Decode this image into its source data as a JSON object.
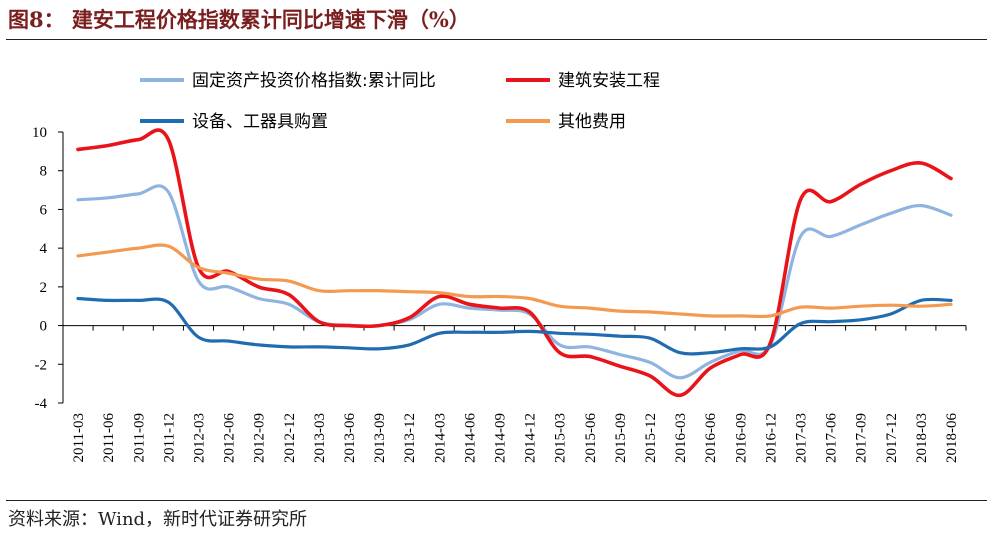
{
  "title": "图8：  建安工程价格指数累计同比增速下滑（%）",
  "source": "资料来源：Wind，新时代证券研究所",
  "chart_data": {
    "type": "line",
    "title": "图8：  建安工程价格指数累计同比增速下滑（%）",
    "xlabel": "",
    "ylabel": "",
    "ylim": [
      -4,
      10
    ],
    "yticks": [
      -4,
      -2,
      0,
      2,
      4,
      6,
      8,
      10
    ],
    "grid": false,
    "legend_position": "top",
    "categories": [
      "2011-03",
      "2011-06",
      "2011-09",
      "2011-12",
      "2012-03",
      "2012-06",
      "2012-09",
      "2012-12",
      "2013-03",
      "2013-06",
      "2013-09",
      "2013-12",
      "2014-03",
      "2014-06",
      "2014-09",
      "2014-12",
      "2015-03",
      "2015-06",
      "2015-09",
      "2015-12",
      "2016-03",
      "2016-06",
      "2016-09",
      "2016-12",
      "2017-03",
      "2017-06",
      "2017-09",
      "2017-12",
      "2018-03",
      "2018-06"
    ],
    "series": [
      {
        "name": "固定资产投资价格指数:累计同比",
        "color": "#8fb4df",
        "values": [
          6.5,
          6.6,
          6.8,
          6.9,
          2.3,
          2.0,
          1.4,
          1.1,
          0.2,
          0.0,
          0.0,
          0.3,
          1.1,
          0.9,
          0.8,
          0.6,
          -1.0,
          -1.1,
          -1.5,
          -1.9,
          -2.7,
          -1.9,
          -1.3,
          -1.0,
          4.6,
          4.6,
          5.2,
          5.8,
          6.2,
          5.7
        ]
      },
      {
        "name": "建筑安装工程",
        "color": "#e8141a",
        "values": [
          9.1,
          9.3,
          9.6,
          9.6,
          3.0,
          2.8,
          2.0,
          1.6,
          0.2,
          0.0,
          0.0,
          0.4,
          1.5,
          1.1,
          0.9,
          0.7,
          -1.4,
          -1.6,
          -2.1,
          -2.6,
          -3.6,
          -2.2,
          -1.5,
          -0.9,
          6.5,
          6.4,
          7.3,
          8.0,
          8.4,
          7.6
        ]
      },
      {
        "name": "设备、工器具购置",
        "color": "#1f6cb0",
        "values": [
          1.4,
          1.3,
          1.3,
          1.2,
          -0.6,
          -0.8,
          -1.0,
          -1.1,
          -1.1,
          -1.15,
          -1.2,
          -1.0,
          -0.4,
          -0.35,
          -0.35,
          -0.3,
          -0.4,
          -0.45,
          -0.55,
          -0.65,
          -1.4,
          -1.4,
          -1.2,
          -1.1,
          0.1,
          0.2,
          0.3,
          0.6,
          1.3,
          1.3
        ]
      },
      {
        "name": "其他费用",
        "color": "#f39a50",
        "values": [
          3.6,
          3.8,
          4.0,
          4.1,
          3.0,
          2.7,
          2.4,
          2.3,
          1.8,
          1.8,
          1.8,
          1.75,
          1.7,
          1.5,
          1.5,
          1.4,
          1.0,
          0.9,
          0.75,
          0.7,
          0.6,
          0.5,
          0.5,
          0.5,
          0.95,
          0.9,
          1.0,
          1.05,
          1.0,
          1.1
        ]
      }
    ]
  }
}
